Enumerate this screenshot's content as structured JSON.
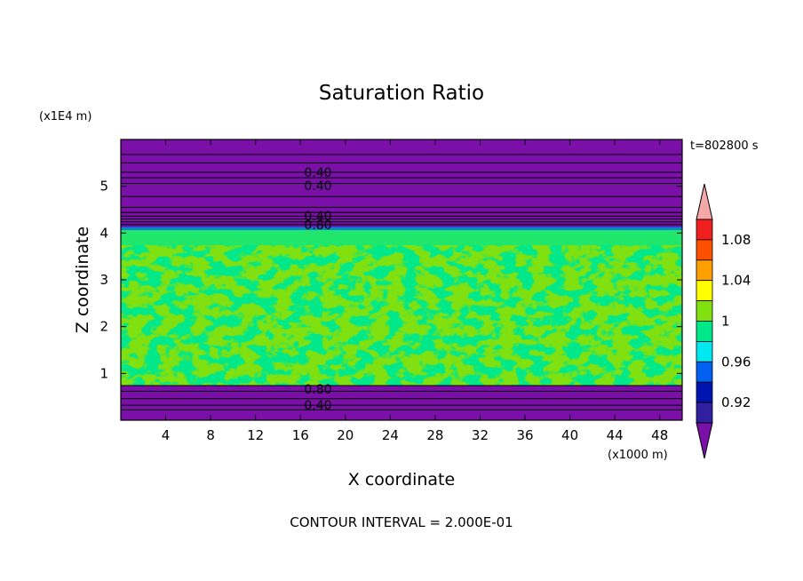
{
  "chart_data": {
    "type": "heatmap",
    "title": "Saturation Ratio",
    "xlabel": "X coordinate",
    "ylabel": "Z coordinate",
    "x_unit": "(x1000 m)",
    "y_unit": "(x1E4 m)",
    "time_label": "t=802800 s",
    "footer": "CONTOUR INTERVAL = 2.000E-01",
    "xlim": [
      0,
      50
    ],
    "ylim": [
      0,
      6
    ],
    "x_ticks": [
      4,
      8,
      12,
      16,
      20,
      24,
      28,
      32,
      36,
      40,
      44,
      48
    ],
    "y_ticks": [
      1,
      2,
      3,
      4,
      5
    ],
    "colorbar": {
      "levels": [
        0.92,
        0.94,
        0.96,
        0.98,
        1.0,
        1.02,
        1.04,
        1.06,
        1.08
      ],
      "tick_labels": [
        "0.92",
        "0.96",
        "1",
        "1.04",
        "1.08"
      ],
      "colors": [
        "#7a10a8",
        "#3020a0",
        "#0014b0",
        "#0060f0",
        "#00e8f0",
        "#00e88a",
        "#80e010",
        "#ffff00",
        "#ffa000",
        "#ff5000",
        "#f02020",
        "#f4a8a8"
      ]
    },
    "contour_labels": [
      "0.40",
      "0.40",
      "0.40",
      "0.80",
      "0.80",
      "0.40"
    ],
    "regions": [
      {
        "z_range": [
          0,
          0.75
        ],
        "value": "< 0.92"
      },
      {
        "z_range": [
          0.75,
          4.1
        ],
        "value": "0.98 - 1.02"
      },
      {
        "z_range": [
          4.1,
          6
        ],
        "value": "< 0.92"
      }
    ]
  }
}
